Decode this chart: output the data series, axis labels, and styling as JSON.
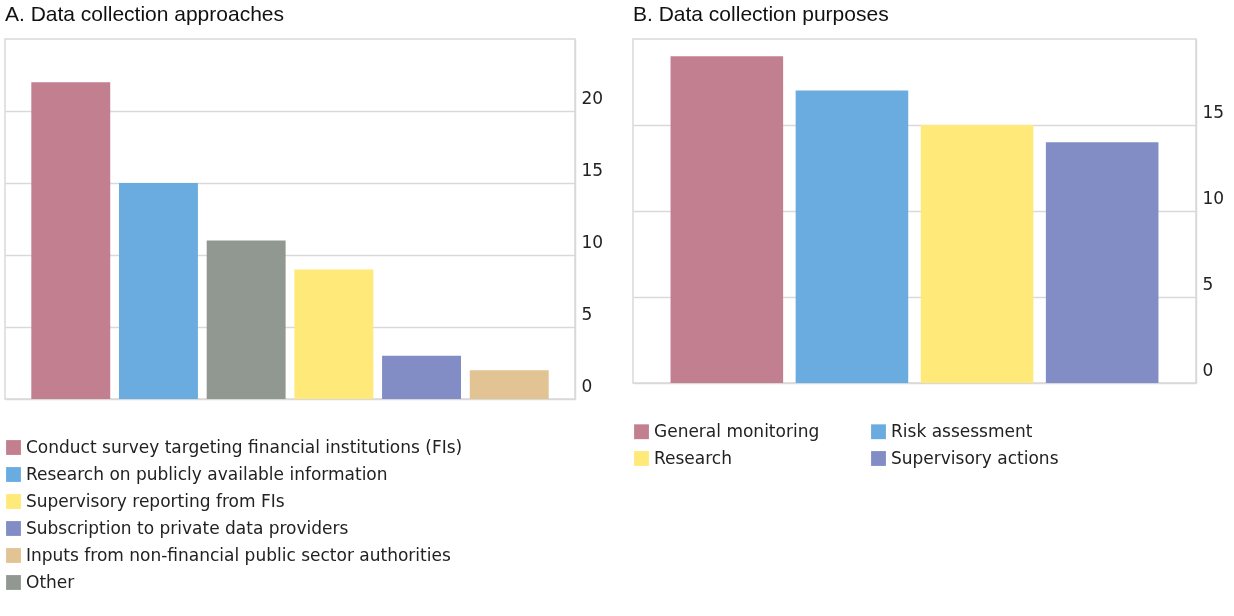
{
  "chart_data": [
    {
      "type": "bar",
      "title": "A. Data collection approaches",
      "categories": [
        null,
        null,
        null,
        null,
        null,
        null
      ],
      "series": [
        {
          "name": "Conduct survey targeting financial institutions (FIs)",
          "color": "#c17f8f",
          "values": [
            22,
            null,
            null,
            null,
            null,
            null
          ]
        },
        {
          "name": "Research on publicly available information",
          "color": "#6aace0",
          "values": [
            null,
            15,
            null,
            null,
            null,
            null
          ]
        },
        {
          "name": "Supervisory reporting from FIs",
          "color": "#ffe978",
          "values": [
            null,
            null,
            null,
            9,
            null,
            null
          ]
        },
        {
          "name": "Subscription to private data providers",
          "color": "#828dc6",
          "values": [
            null,
            null,
            null,
            null,
            3,
            null
          ]
        },
        {
          "name": "Inputs from non-financial public sector authorities",
          "color": "#e2c393",
          "values": [
            null,
            null,
            null,
            null,
            null,
            2
          ]
        },
        {
          "name": "Other",
          "color": "#919891",
          "values": [
            null,
            null,
            11,
            null,
            null,
            null
          ]
        }
      ],
      "ylim": [
        0,
        25
      ],
      "yticks": [
        0,
        5,
        10,
        15,
        20
      ],
      "grid": "y",
      "legend": "bottom",
      "tick_labels": "y"
    },
    {
      "type": "bar",
      "title": "B. Data collection purposes",
      "categories": [
        null,
        null,
        null,
        null
      ],
      "series": [
        {
          "name": "General monitoring",
          "color": "#c17f8f",
          "values": [
            19,
            null,
            null,
            null
          ]
        },
        {
          "name": "Research",
          "color": "#ffe978",
          "values": [
            null,
            null,
            15,
            null
          ]
        },
        {
          "name": "Risk assessment",
          "color": "#6aace0",
          "values": [
            null,
            17,
            null,
            null
          ]
        },
        {
          "name": "Supervisory actions",
          "color": "#828dc6",
          "values": [
            null,
            null,
            null,
            14
          ]
        }
      ],
      "ylim": [
        0,
        20
      ],
      "yticks": [
        0,
        5,
        10,
        15
      ],
      "grid": "y",
      "legend": "bottom",
      "tick_labels": "y"
    }
  ]
}
